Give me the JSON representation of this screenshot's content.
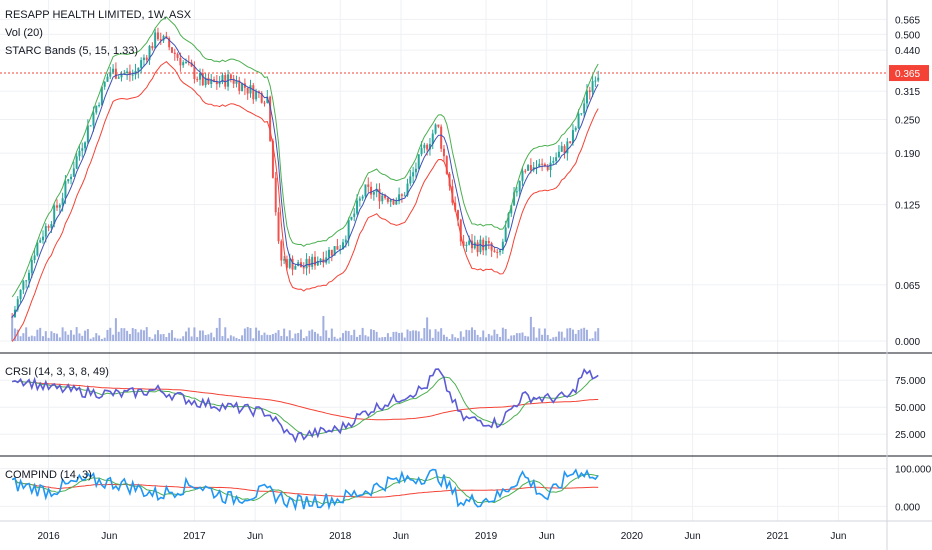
{
  "legend": {
    "symbol": "RESAPP HEALTH LIMITED, 1W, ASX",
    "volume": "Vol (20)",
    "starc": "STARC Bands (5, 15, 1.33)",
    "crsi": "CRSI (14, 3, 3, 8, 49)",
    "compind": "COMPIND (14, 3)"
  },
  "colors": {
    "up": "#26a69a",
    "down": "#ef5350",
    "band_upper": "#4caf50",
    "band_lower": "#f44336",
    "band_mid": "#3f51b5",
    "crsi_main": "#5b5bd6",
    "crsi_signal": "#4caf50",
    "crsi_slow": "#f44336",
    "compind_main": "#2196f3",
    "compind_signal": "#4caf50",
    "compind_slow": "#f44336",
    "last_price_bg": "#f44336",
    "volume": "#8a9bd8"
  },
  "chart_data": [
    {
      "type": "candlestick",
      "title": "RESAPP HEALTH LIMITED, 1W, ASX",
      "last_price": 0.365,
      "y_scale": "log",
      "y_ticks": [
        0.0,
        0.065,
        0.125,
        0.19,
        0.25,
        0.315,
        0.365,
        0.44,
        0.5,
        0.565
      ],
      "x_ticks": [
        "2016",
        "Jun",
        "2017",
        "Jun",
        "2018",
        "Jun",
        "2019",
        "Jun",
        "2020",
        "Jun",
        "2021",
        "Jun"
      ],
      "close_anchors": [
        {
          "x": "2015-10",
          "y": 0.05
        },
        {
          "x": "2015-12",
          "y": 0.09
        },
        {
          "x": "2016-02",
          "y": 0.13
        },
        {
          "x": "2016-04",
          "y": 0.22
        },
        {
          "x": "2016-06",
          "y": 0.37
        },
        {
          "x": "2016-08",
          "y": 0.36
        },
        {
          "x": "2016-10",
          "y": 0.5
        },
        {
          "x": "2016-12",
          "y": 0.4
        },
        {
          "x": "2017-02",
          "y": 0.33
        },
        {
          "x": "2017-04",
          "y": 0.35
        },
        {
          "x": "2017-06",
          "y": 0.31
        },
        {
          "x": "2017-07",
          "y": 0.3
        },
        {
          "x": "2017-08",
          "y": 0.08
        },
        {
          "x": "2017-10",
          "y": 0.075
        },
        {
          "x": "2018-01",
          "y": 0.09
        },
        {
          "x": "2018-03",
          "y": 0.14
        },
        {
          "x": "2018-06",
          "y": 0.13
        },
        {
          "x": "2018-08",
          "y": 0.2
        },
        {
          "x": "2018-09",
          "y": 0.24
        },
        {
          "x": "2018-11",
          "y": 0.09
        },
        {
          "x": "2019-01",
          "y": 0.09
        },
        {
          "x": "2019-02",
          "y": 0.08
        },
        {
          "x": "2019-04",
          "y": 0.17
        },
        {
          "x": "2019-06",
          "y": 0.17
        },
        {
          "x": "2019-08",
          "y": 0.21
        },
        {
          "x": "2019-09",
          "y": 0.28
        },
        {
          "x": "2019-10",
          "y": 0.365
        }
      ]
    },
    {
      "type": "line",
      "title": "CRSI (14, 3, 3, 8, 49)",
      "y_ticks": [
        25.0,
        50.0,
        75.0
      ],
      "series": [
        {
          "name": "CRSI",
          "x": [
            "2015-10",
            "2016-01",
            "2016-04",
            "2016-07",
            "2016-10",
            "2017-01",
            "2017-04",
            "2017-07",
            "2017-09",
            "2018-01",
            "2018-03",
            "2018-05",
            "2018-08",
            "2018-09",
            "2018-11",
            "2019-02",
            "2019-04",
            "2019-06",
            "2019-08",
            "2019-09",
            "2019-10"
          ],
          "values": [
            78,
            68,
            64,
            62,
            66,
            55,
            50,
            45,
            22,
            30,
            45,
            55,
            68,
            85,
            40,
            35,
            60,
            58,
            60,
            82,
            78
          ]
        }
      ]
    },
    {
      "type": "line",
      "title": "COMPIND (14, 3)",
      "y_ticks": [
        0.0,
        100.0
      ],
      "series": [
        {
          "name": "COMPIND",
          "x": [
            "2015-10",
            "2016-01",
            "2016-04",
            "2016-07",
            "2016-10",
            "2017-01",
            "2017-04",
            "2017-07",
            "2017-09",
            "2018-01",
            "2018-03",
            "2018-05",
            "2018-08",
            "2018-09",
            "2018-11",
            "2019-02",
            "2019-04",
            "2019-06",
            "2019-08",
            "2019-09",
            "2019-10"
          ],
          "values": [
            60,
            40,
            70,
            60,
            30,
            60,
            20,
            40,
            10,
            20,
            40,
            65,
            80,
            85,
            10,
            25,
            85,
            20,
            90,
            95,
            70
          ]
        }
      ]
    }
  ]
}
